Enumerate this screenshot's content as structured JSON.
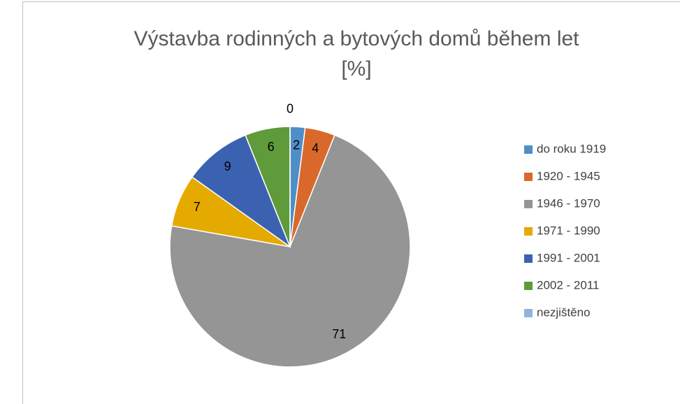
{
  "chart_data": {
    "type": "pie",
    "title": "Výstavba rodinných a bytových domů během let [%]",
    "categories": [
      "do roku 1919",
      "1920 - 1945",
      "1946 - 1970",
      "1971 - 1990",
      "1991 - 2001",
      "2002 - 2011",
      "nezjištěno"
    ],
    "values": [
      2,
      4,
      71,
      7,
      9,
      6,
      0
    ],
    "colors": [
      "#4e8ec9",
      "#d9692a",
      "#959595",
      "#e5aa00",
      "#3b62b0",
      "#5f9a3b",
      "#8fb4de"
    ],
    "legend": "right"
  }
}
